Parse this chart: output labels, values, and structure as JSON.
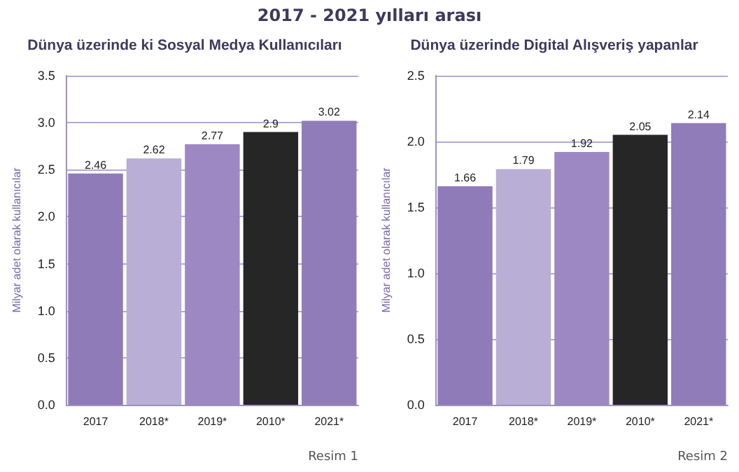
{
  "chart_data": [
    {
      "type": "bar",
      "title": "2017 - 2021 yılları arası",
      "subtitle": "Dünya üzerinde ki Sosyal Medya Kullanıcıları",
      "ylabel": "Milyar adet olarak kullanıcılar",
      "categories": [
        "2017",
        "2018*",
        "2019*",
        "2010*",
        "2021*"
      ],
      "values": [
        2.46,
        2.62,
        2.77,
        2.9,
        3.02
      ],
      "colors": [
        "#8e7bb8",
        "#b9aed6",
        "#9d88c4",
        "#262626",
        "#8f7cb9"
      ],
      "ylim": [
        0,
        3.5
      ],
      "yticks": [
        {
          "value": 0,
          "label": "0.0"
        },
        {
          "value": 0.5,
          "label": "0.5"
        },
        {
          "value": 1,
          "label": "1.0"
        },
        {
          "value": 1.5,
          "label": "1.5"
        },
        {
          "value": 2,
          "label": "2.0"
        },
        {
          "value": 2.5,
          "label": "2.5"
        },
        {
          "value": 3,
          "label": "3.0"
        },
        {
          "value": 3.5,
          "label": "3.5"
        }
      ],
      "grid": "y",
      "data_labels": true,
      "annotations": [
        "Resim 1"
      ]
    },
    {
      "type": "bar",
      "subtitle": "Dünya üzerinde Digital Alışveriş yapanlar",
      "ylabel": "Milyar adet olarak kullanıcılar",
      "categories": [
        "2017",
        "2018*",
        "2019*",
        "2010*",
        "2021*"
      ],
      "values": [
        1.66,
        1.79,
        1.92,
        2.05,
        2.14
      ],
      "colors": [
        "#8e7bb8",
        "#b9aed6",
        "#9d88c4",
        "#262626",
        "#8f7cb9"
      ],
      "ylim": [
        0,
        2.5
      ],
      "yticks": [
        {
          "value": 0,
          "label": "0.0"
        },
        {
          "value": 0.5,
          "label": "0.5"
        },
        {
          "value": 1,
          "label": "1.0"
        },
        {
          "value": 1.5,
          "label": "1.5"
        },
        {
          "value": 2,
          "label": "2.0"
        },
        {
          "value": 2.5,
          "label": "2.5"
        }
      ],
      "grid": "y",
      "data_labels": true,
      "annotations": [
        "Resim 2"
      ]
    }
  ]
}
